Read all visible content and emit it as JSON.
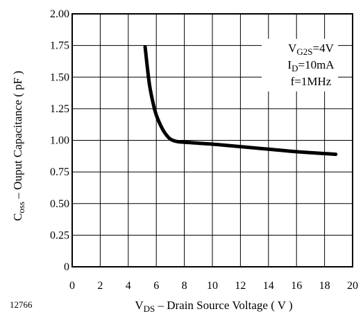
{
  "figure_id": "12766",
  "chart_data": {
    "type": "line",
    "xlabel": {
      "prefix": "V",
      "sub": "DS",
      "rest": " – Drain Source Voltage ( V )"
    },
    "ylabel": {
      "prefix": "C",
      "sub": "oss",
      "rest": " – Ouput Capacitance ( pF )"
    },
    "xlim": [
      0,
      20
    ],
    "ylim": [
      0,
      2.0
    ],
    "xticks": [
      0,
      2,
      4,
      6,
      8,
      10,
      12,
      14,
      16,
      18,
      20
    ],
    "yticks": [
      "0",
      "0.25",
      "0.50",
      "0.75",
      "1.00",
      "1.25",
      "1.50",
      "1.75",
      "2.00"
    ],
    "grid": true,
    "annotation": [
      {
        "prefix": "V",
        "sub": "G2S",
        "rest": "=4V"
      },
      {
        "prefix": "I",
        "sub": "D",
        "rest": "=10mA"
      },
      {
        "prefix": "",
        "sub": "",
        "rest": "f=1MHz"
      }
    ],
    "series": [
      {
        "x": [
          5.2,
          5.5,
          5.8,
          6.0,
          6.3,
          6.6,
          7.0,
          7.5,
          8.0,
          10.0,
          12.0,
          14.0,
          16.0,
          18.0,
          18.8
        ],
        "y": [
          1.74,
          1.45,
          1.28,
          1.2,
          1.12,
          1.06,
          1.01,
          0.99,
          0.985,
          0.97,
          0.95,
          0.93,
          0.91,
          0.895,
          0.89
        ]
      }
    ]
  }
}
